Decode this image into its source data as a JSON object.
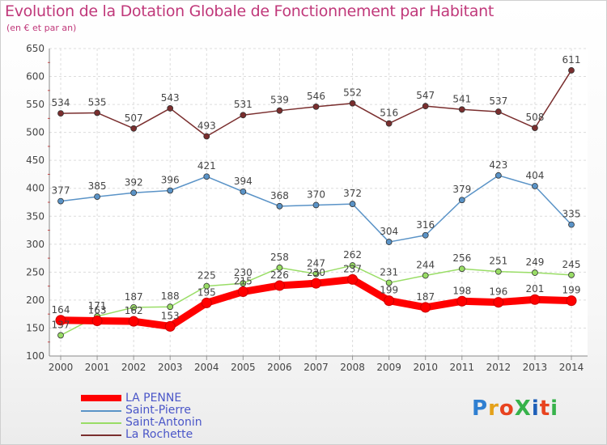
{
  "header": {
    "title": "Evolution de la Dotation Globale de Fonctionnement par Habitant",
    "subtitle": "(en € et par an)"
  },
  "logo": {
    "text": "ProXiti"
  },
  "chart_data": {
    "type": "line",
    "title": "Evolution de la Dotation Globale de Fonctionnement par Habitant",
    "subtitle": "(en € et par an)",
    "xlabel": "",
    "ylabel": "",
    "x": [
      "2000",
      "2001",
      "2002",
      "2003",
      "2004",
      "2005",
      "2006",
      "2007",
      "2008",
      "2009",
      "2010",
      "2011",
      "2012",
      "2013",
      "2014"
    ],
    "ylim": [
      100,
      650
    ],
    "yticks": [
      100,
      150,
      200,
      250,
      300,
      350,
      400,
      450,
      500,
      550,
      600,
      650
    ],
    "grid": true,
    "legend_position": "bottom-left",
    "series": [
      {
        "name": "LA PENNE",
        "color": "#ff0000",
        "values": [
          164,
          163,
          162,
          153,
          195,
          215,
          226,
          230,
          237,
          199,
          187,
          198,
          196,
          201,
          199
        ]
      },
      {
        "name": "Saint-Pierre",
        "color": "#5a93c7",
        "values": [
          377,
          385,
          392,
          396,
          421,
          394,
          368,
          370,
          372,
          304,
          316,
          379,
          423,
          404,
          335
        ]
      },
      {
        "name": "Saint-Antonin",
        "color": "#99dd66",
        "values": [
          137,
          171,
          187,
          188,
          225,
          230,
          258,
          247,
          262,
          231,
          244,
          256,
          251,
          249,
          245
        ]
      },
      {
        "name": "La Rochette",
        "color": "#7a2e2e",
        "values": [
          534,
          535,
          507,
          543,
          493,
          531,
          539,
          546,
          552,
          516,
          547,
          541,
          537,
          508,
          611
        ]
      }
    ]
  }
}
